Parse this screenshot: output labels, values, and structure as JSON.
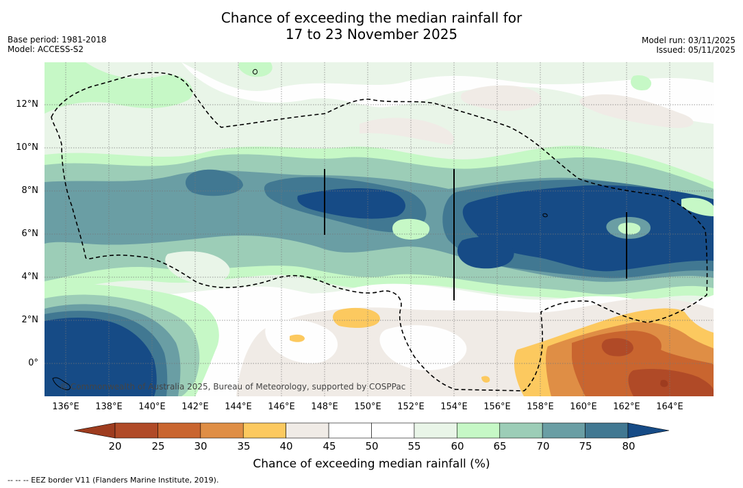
{
  "header": {
    "title_line1": "Chance of exceeding the median rainfall for",
    "title_line2": "17 to 23 November 2025",
    "base_period": "Base period: 1981-2018",
    "model": "Model: ACCESS-S2",
    "model_run": "Model run: 03/11/2025",
    "issued": "Issued: 05/11/2025"
  },
  "map": {
    "latitude_labels": [
      "12°N",
      "10°N",
      "8°N",
      "6°N",
      "4°N",
      "2°N",
      "0°"
    ],
    "longitude_labels": [
      "136°E",
      "138°E",
      "140°E",
      "142°E",
      "144°E",
      "146°E",
      "148°E",
      "150°E",
      "152°E",
      "154°E",
      "156°E",
      "158°E",
      "160°E",
      "162°E",
      "164°E"
    ],
    "copyright": "© Commonwealth of Australia 2025, Bureau of Meteorology, supported by COSPPac"
  },
  "colorbar": {
    "ticks": [
      "20",
      "25",
      "30",
      "35",
      "40",
      "45",
      "50",
      "55",
      "60",
      "65",
      "70",
      "75",
      "80"
    ],
    "colors": [
      "#9e3c1f",
      "#b04a27",
      "#c9652f",
      "#df8e45",
      "#fcc95f",
      "#f0ebe6",
      "#ffffff",
      "#ffffff",
      "#e9f5e8",
      "#c6f8c6",
      "#9ccdb7",
      "#6a9ea4",
      "#417892",
      "#164b86"
    ],
    "title": "Chance of exceeding median rainfall (%)"
  },
  "legend": {
    "eez_note": "--  --  -- EEZ border V11 (Flanders Marine Institute, 2019)."
  }
}
